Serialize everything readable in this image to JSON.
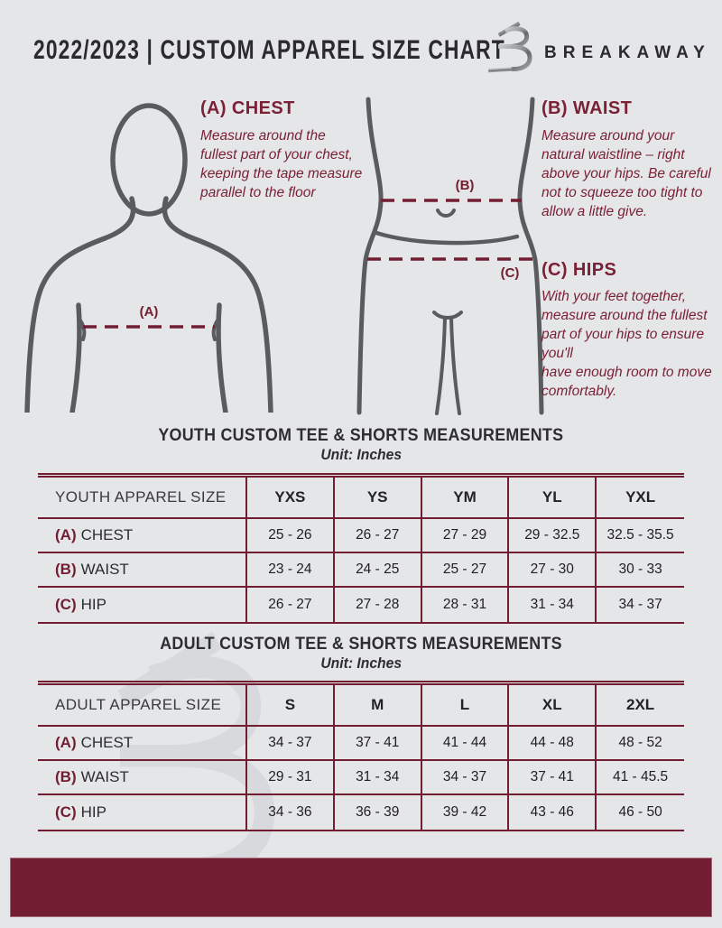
{
  "page": {
    "accent_maroon": "#721d32",
    "text_dark": "#2b2b2d",
    "figure_gray": "#5a5b5e",
    "background": "#e5e6e7"
  },
  "header": {
    "title": "2022/2023  |  CUSTOM APPAREL SIZE CHART",
    "brand": "BREAKAWAY"
  },
  "guides": [
    {
      "heading": "(A) CHEST",
      "marker": "(A)",
      "body": "Measure around the fullest part of your chest, keeping the tape measure parallel to the floor"
    },
    {
      "heading": "(B) WAIST",
      "marker": "(B)",
      "body": "Measure around your natural waistline – right above your hips. Be careful not to squeeze too tight to allow a little give."
    },
    {
      "heading": "(C) HIPS",
      "marker": "(C)",
      "body": "With your feet together, measure around the fullest part of your hips to ensure you'll\nhave enough room to move comfortably."
    }
  ],
  "tables": [
    {
      "title": "YOUTH CUSTOM TEE & SHORTS MEASUREMENTS",
      "unit": "Unit: Inches",
      "columns": [
        "YOUTH APPAREL SIZE",
        "YXS",
        "YS",
        "YM",
        "YL",
        "YXL"
      ],
      "rows": [
        {
          "prefix": "(A)",
          "label": "CHEST",
          "values": [
            "25 - 26",
            "26 - 27",
            "27 - 29",
            "29 - 32.5",
            "32.5 - 35.5"
          ]
        },
        {
          "prefix": "(B)",
          "label": "WAIST",
          "values": [
            "23 - 24",
            "24 - 25",
            "25 - 27",
            "27 - 30",
            "30 - 33"
          ]
        },
        {
          "prefix": "(C)",
          "label": "HIP",
          "values": [
            "26 - 27",
            "27 - 28",
            "28 - 31",
            "31 - 34",
            "34 - 37"
          ]
        }
      ]
    },
    {
      "title": "ADULT CUSTOM TEE & SHORTS MEASUREMENTS",
      "unit": "Unit: Inches",
      "columns": [
        "ADULT APPAREL SIZE",
        "S",
        "M",
        "L",
        "XL",
        "2XL"
      ],
      "rows": [
        {
          "prefix": "(A)",
          "label": "CHEST",
          "values": [
            "34 - 37",
            "37 - 41",
            "41 - 44",
            "44 - 48",
            "48 - 52"
          ]
        },
        {
          "prefix": "(B)",
          "label": "WAIST",
          "values": [
            "29 - 31",
            "31 - 34",
            "34 - 37",
            "37 - 41",
            "41 - 45.5"
          ]
        },
        {
          "prefix": "(C)",
          "label": "HIP",
          "values": [
            "34 - 36",
            "36 - 39",
            "39 - 42",
            "43 - 46",
            "46 - 50"
          ]
        }
      ]
    }
  ]
}
